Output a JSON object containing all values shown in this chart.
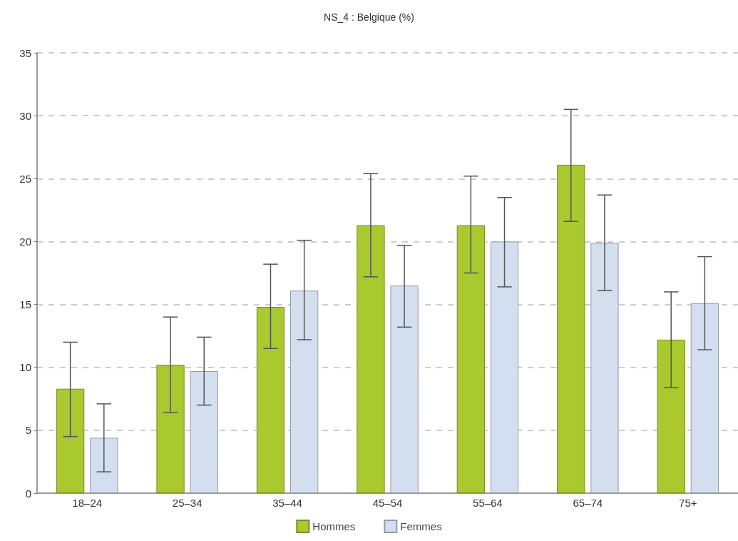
{
  "chart_data": {
    "type": "bar",
    "title": "NS_4 : Belgique (%)",
    "categories": [
      "18–24",
      "25–34",
      "35–44",
      "45–54",
      "55–64",
      "65–74",
      "75+"
    ],
    "series": [
      {
        "name": "Hommes",
        "color": "#a9c92f",
        "values": [
          8.3,
          10.2,
          14.8,
          21.3,
          21.3,
          26.1,
          12.2
        ],
        "errors": [
          [
            4.5,
            12.0
          ],
          [
            6.4,
            14.0
          ],
          [
            11.5,
            18.2
          ],
          [
            17.2,
            25.4
          ],
          [
            17.5,
            25.2
          ],
          [
            21.6,
            30.5
          ],
          [
            8.4,
            16.0
          ]
        ]
      },
      {
        "name": "Femmes",
        "color": "#d3deef",
        "values": [
          4.4,
          9.7,
          16.1,
          16.5,
          20.0,
          19.9,
          15.1
        ],
        "errors": [
          [
            1.7,
            7.1
          ],
          [
            7.0,
            12.4
          ],
          [
            12.2,
            20.1
          ],
          [
            13.2,
            19.7
          ],
          [
            16.4,
            23.5
          ],
          [
            16.1,
            23.7
          ],
          [
            11.4,
            18.8
          ]
        ]
      }
    ],
    "ylim": [
      0,
      35
    ],
    "yticks": [
      0,
      5,
      10,
      15,
      20,
      25,
      30,
      35
    ],
    "grid": "y",
    "legend": "bottom"
  }
}
